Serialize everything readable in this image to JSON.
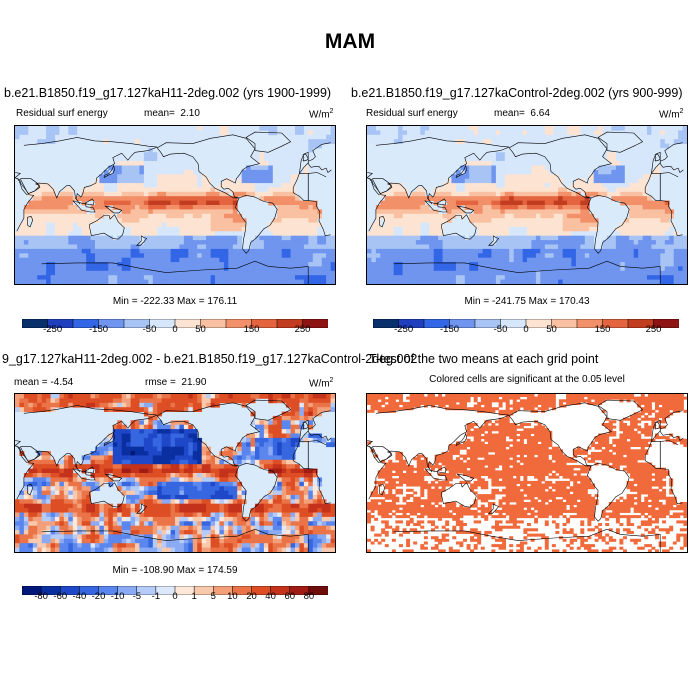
{
  "title": "MAM",
  "colors": {
    "diverging12": [
      "#08306b",
      "#1f3fbf",
      "#3366e6",
      "#6f95ef",
      "#a7c4f5",
      "#d6e6fb",
      "#fde4d2",
      "#f9c1a1",
      "#f2906a",
      "#e3643f",
      "#c23c1f",
      "#8e1414"
    ],
    "diverging16": [
      "#00177a",
      "#0a2fa0",
      "#1f48c8",
      "#3666e0",
      "#5a86ee",
      "#8aaaf4",
      "#b5cbf8",
      "#dde8fb",
      "#fde7d8",
      "#f9c9ad",
      "#f3a07a",
      "#ea7448",
      "#de4e25",
      "#c5321c",
      "#a01c14",
      "#6e0d0b"
    ],
    "significant": "#f06a3c",
    "ocean_bg": "#d9eafb"
  },
  "panels": [
    {
      "title": "b.e21.B1850.f19_g17.127kaH11-2deg.002 (yrs 1900-1999)",
      "left_label": "Residual surf energy",
      "mean_label": "mean=",
      "mean_value": "2.10",
      "units": "W/m",
      "units_sup": "2",
      "minmax": "Min = -222.33 Max = 176.11",
      "ticks": [
        "-250",
        "-150",
        "-50",
        "0",
        "50",
        "150",
        "250"
      ]
    },
    {
      "title": "b.e21.B1850.f19_g17.127kaControl-2deg.002 (yrs 900-999)",
      "left_label": "Residual surf energy",
      "mean_label": "mean=",
      "mean_value": "6.64",
      "units": "W/m",
      "units_sup": "2",
      "minmax": "Min = -241.75 Max = 170.43",
      "ticks": [
        "-250",
        "-150",
        "-50",
        "0",
        "50",
        "150",
        "250"
      ]
    },
    {
      "title": "9_g17.127kaH11-2deg.002 - b.e21.B1850.f19_g17.127kaControl-2deg.002",
      "mean_label": "mean =",
      "mean_value": "-4.54",
      "rmse_label": "rmse =",
      "rmse_value": "21.90",
      "units": "W/m",
      "units_sup": "2",
      "minmax": "Min = -108.90 Max = 174.59",
      "ticks": [
        "-80",
        "-60",
        "-40",
        "-20",
        "-10",
        "-5",
        "-1",
        "0",
        "1",
        "5",
        "10",
        "20",
        "40",
        "60",
        "80"
      ]
    },
    {
      "title": "T-test of the two means at each grid point",
      "subtitle": "Colored cells are significant at the 0.05 level"
    }
  ],
  "chart_data": [
    {
      "type": "heatmap",
      "title": "b.e21.B1850.f19_g17.127kaH11-2deg.002 (yrs 1900-1999)",
      "variable": "Residual surf energy",
      "units": "W/m2",
      "mean": 2.1,
      "min": -222.33,
      "max": 176.11,
      "colorbar_ticks": [
        -250,
        -150,
        -50,
        0,
        50,
        150,
        250
      ]
    },
    {
      "type": "heatmap",
      "title": "b.e21.B1850.f19_g17.127kaControl-2deg.002 (yrs 900-999)",
      "variable": "Residual surf energy",
      "units": "W/m2",
      "mean": 6.64,
      "min": -241.75,
      "max": 170.43,
      "colorbar_ticks": [
        -250,
        -150,
        -50,
        0,
        50,
        150,
        250
      ]
    },
    {
      "type": "heatmap",
      "title": "9_g17.127kaH11-2deg.002 - b.e21.B1850.f19_g17.127kaControl-2deg.002",
      "units": "W/m2",
      "mean": -4.54,
      "rmse": 21.9,
      "min": -108.9,
      "max": 174.59,
      "colorbar_ticks": [
        -80,
        -60,
        -40,
        -20,
        -10,
        -5,
        -1,
        0,
        1,
        5,
        10,
        20,
        40,
        60,
        80
      ]
    },
    {
      "type": "heatmap",
      "title": "T-test of the two means at each grid point",
      "subtitle": "Colored cells are significant at the 0.05 level"
    }
  ]
}
